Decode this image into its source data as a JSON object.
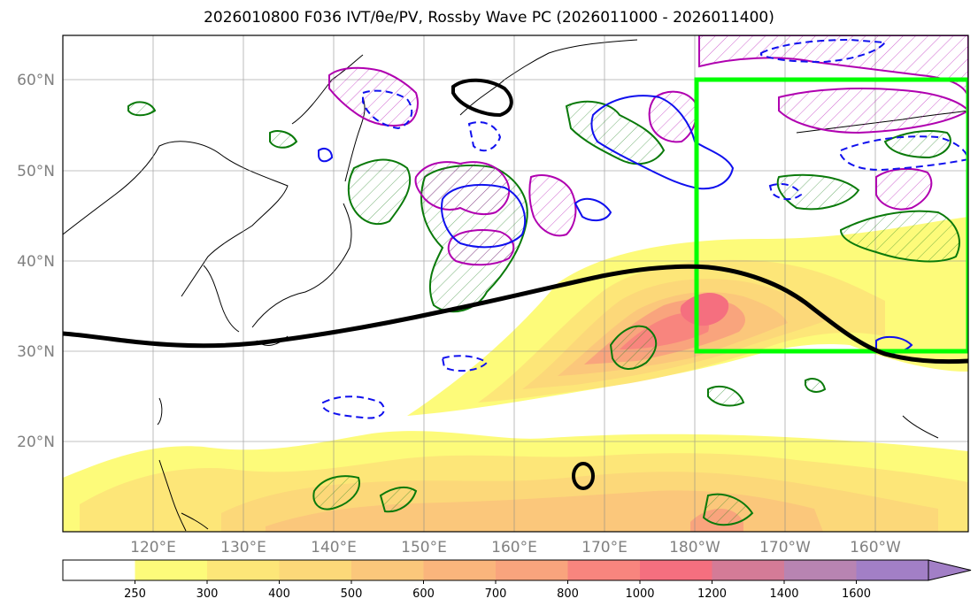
{
  "title": "2026010800 F036 IVT/θe/PV, Rossby Wave PC (2026011000 - 2026011400)",
  "map": {
    "lat_labels": [
      "60°N",
      "50°N",
      "40°N",
      "30°N",
      "20°N"
    ],
    "lon_labels": [
      "120°E",
      "130°E",
      "140°E",
      "150°E",
      "160°E",
      "170°E",
      "180°W",
      "170°W",
      "160°W"
    ],
    "highlight_box": {
      "lon_range": [
        "180°W",
        "150°W"
      ],
      "lat_range": [
        "30°N",
        "60°N"
      ],
      "color": "#00ff00"
    },
    "jet_line_color": "#000000"
  },
  "colorbar": {
    "levels": [
      "250",
      "300",
      "400",
      "500",
      "600",
      "700",
      "800",
      "1000",
      "1200",
      "1400",
      "1600"
    ],
    "colors": [
      "#ffffff",
      "#fdfb7a",
      "#fde678",
      "#fcd879",
      "#fbc77b",
      "#fab57c",
      "#f9a47d",
      "#f8857e",
      "#f56f7f",
      "#d47b97",
      "#b884b2",
      "#a27fc6"
    ]
  }
}
